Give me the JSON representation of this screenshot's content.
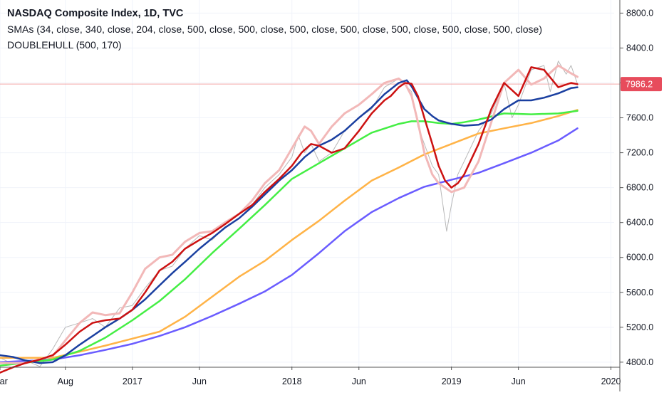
{
  "header": {
    "title": "NASDAQ Composite Index, 1D, TVC",
    "indicator_sma": "SMAs (34, close, 340, close, 204, close, 500, close, 500, close, 500, close, 500, close, 500, close, 500, close, 500, close)",
    "indicator_hull": "DOUBLEHULL (500, 170)"
  },
  "chart_data": {
    "type": "line",
    "title": "NASDAQ Composite Index, 1D, TVC",
    "last_price_label": "7986.2",
    "last_price": 7986.2,
    "ylim": [
      4750,
      8950
    ],
    "xlim": [
      2016.17,
      2020.02
    ],
    "y_ticks": [
      4800,
      5200,
      5600,
      6000,
      6400,
      6800,
      7200,
      7600,
      8000,
      8400,
      8800
    ],
    "y_tick_labels": [
      "4800.0",
      "5200.0",
      "5600.0",
      "6000.0",
      "6400.0",
      "6800.0",
      "7200.0",
      "7600.0",
      "8000.0",
      "8400.0",
      "8800.0"
    ],
    "x_ticks": [
      {
        "label": "Mar",
        "x": 2016.17
      },
      {
        "label": "Aug",
        "x": 2016.58
      },
      {
        "label": "2017",
        "x": 2017.0
      },
      {
        "label": "Jun",
        "x": 2017.42
      },
      {
        "label": "2018",
        "x": 2018.0
      },
      {
        "label": "Jun",
        "x": 2018.42
      },
      {
        "label": "2019",
        "x": 2019.0
      },
      {
        "label": "Jun",
        "x": 2019.42
      },
      {
        "label": "2020",
        "x": 2020.0
      }
    ],
    "colors": {
      "price": "#b8b8b8",
      "sma_blue": "#1a3fa0",
      "sma_green": "#44ee44",
      "sma_orange": "#ffb347",
      "sma_purple": "#6a5cff",
      "hull_red": "#cc1111",
      "hull_pink": "#f2b8b8",
      "last_price_line": "#f4a6a6",
      "badge": "#e74c5c"
    },
    "series": [
      {
        "key": "price",
        "x": [
          2016.17,
          2016.25,
          2016.33,
          2016.42,
          2016.5,
          2016.58,
          2016.67,
          2016.75,
          2016.83,
          2016.92,
          2017.0,
          2017.08,
          2017.17,
          2017.25,
          2017.33,
          2017.42,
          2017.5,
          2017.58,
          2017.67,
          2017.75,
          2017.83,
          2017.92,
          2018.0,
          2018.04,
          2018.08,
          2018.12,
          2018.17,
          2018.25,
          2018.33,
          2018.42,
          2018.5,
          2018.58,
          2018.67,
          2018.75,
          2018.79,
          2018.83,
          2018.88,
          2018.92,
          2018.97,
          2019.0,
          2019.04,
          2019.08,
          2019.17,
          2019.25,
          2019.33,
          2019.38,
          2019.42,
          2019.5,
          2019.58,
          2019.62,
          2019.67,
          2019.72,
          2019.75,
          2019.79
        ],
        "y": [
          4850,
          4780,
          4820,
          4750,
          4950,
          5200,
          5250,
          5300,
          5200,
          5420,
          5450,
          5650,
          5850,
          5900,
          6100,
          6250,
          6200,
          6350,
          6450,
          6600,
          6800,
          6950,
          7150,
          7400,
          7200,
          7300,
          7100,
          7200,
          7450,
          7600,
          7700,
          7950,
          8050,
          7900,
          7500,
          7300,
          7050,
          6950,
          6300,
          6600,
          6950,
          7100,
          7450,
          7650,
          8000,
          7600,
          7750,
          8150,
          8200,
          7900,
          8250,
          8100,
          8200,
          7990
        ]
      },
      {
        "key": "sma_blue",
        "x": [
          2016.17,
          2016.25,
          2016.33,
          2016.42,
          2016.5,
          2016.58,
          2016.67,
          2016.75,
          2016.83,
          2016.92,
          2017.0,
          2017.08,
          2017.17,
          2017.25,
          2017.33,
          2017.42,
          2017.5,
          2017.58,
          2017.67,
          2017.75,
          2017.83,
          2017.92,
          2018.0,
          2018.08,
          2018.17,
          2018.25,
          2018.33,
          2018.42,
          2018.5,
          2018.58,
          2018.67,
          2018.72,
          2018.75,
          2018.79,
          2018.83,
          2018.88,
          2018.92,
          2019.0,
          2019.08,
          2019.17,
          2019.25,
          2019.33,
          2019.42,
          2019.5,
          2019.58,
          2019.67,
          2019.75,
          2019.79
        ],
        "y": [
          4880,
          4860,
          4820,
          4790,
          4800,
          4880,
          5000,
          5100,
          5200,
          5300,
          5400,
          5520,
          5680,
          5820,
          5950,
          6100,
          6220,
          6340,
          6450,
          6580,
          6720,
          6880,
          7000,
          7150,
          7280,
          7350,
          7450,
          7600,
          7720,
          7870,
          8000,
          8030,
          7960,
          7830,
          7700,
          7620,
          7570,
          7530,
          7510,
          7520,
          7580,
          7700,
          7800,
          7800,
          7830,
          7880,
          7940,
          7950
        ]
      },
      {
        "key": "sma_green",
        "x": [
          2016.17,
          2016.5,
          2016.67,
          2016.83,
          2017.0,
          2017.17,
          2017.33,
          2017.5,
          2017.67,
          2017.83,
          2018.0,
          2018.17,
          2018.33,
          2018.5,
          2018.67,
          2018.75,
          2018.83,
          2018.92,
          2019.0,
          2019.08,
          2019.17,
          2019.33,
          2019.5,
          2019.67,
          2019.79
        ],
        "y": [
          4760,
          4830,
          4930,
          5080,
          5280,
          5500,
          5750,
          6050,
          6330,
          6600,
          6900,
          7080,
          7250,
          7430,
          7530,
          7560,
          7560,
          7540,
          7530,
          7550,
          7580,
          7650,
          7640,
          7650,
          7680
        ]
      },
      {
        "key": "sma_orange",
        "x": [
          2016.17,
          2016.5,
          2016.67,
          2016.83,
          2017.0,
          2017.17,
          2017.33,
          2017.5,
          2017.67,
          2017.83,
          2018.0,
          2018.17,
          2018.33,
          2018.5,
          2018.67,
          2018.83,
          2019.0,
          2019.17,
          2019.33,
          2019.5,
          2019.67,
          2019.79
        ],
        "y": [
          4850,
          4850,
          4920,
          4990,
          5070,
          5150,
          5320,
          5550,
          5780,
          5960,
          6200,
          6420,
          6650,
          6880,
          7030,
          7180,
          7300,
          7420,
          7480,
          7540,
          7620,
          7690
        ]
      },
      {
        "key": "sma_purple",
        "x": [
          2016.17,
          2016.5,
          2016.67,
          2016.83,
          2017.0,
          2017.17,
          2017.33,
          2017.5,
          2017.67,
          2017.83,
          2018.0,
          2018.17,
          2018.33,
          2018.5,
          2018.67,
          2018.83,
          2019.0,
          2019.17,
          2019.33,
          2019.5,
          2019.67,
          2019.79
        ],
        "y": [
          4800,
          4830,
          4880,
          4940,
          5010,
          5100,
          5200,
          5330,
          5470,
          5610,
          5800,
          6050,
          6300,
          6520,
          6680,
          6810,
          6890,
          6970,
          7080,
          7200,
          7340,
          7480
        ]
      },
      {
        "key": "hull_pink",
        "x": [
          2016.17,
          2016.33,
          2016.5,
          2016.58,
          2016.67,
          2016.75,
          2016.83,
          2016.92,
          2017.0,
          2017.08,
          2017.17,
          2017.25,
          2017.33,
          2017.42,
          2017.5,
          2017.58,
          2017.67,
          2017.75,
          2017.83,
          2017.92,
          2018.0,
          2018.08,
          2018.12,
          2018.17,
          2018.25,
          2018.33,
          2018.42,
          2018.5,
          2018.58,
          2018.67,
          2018.71,
          2018.75,
          2018.79,
          2018.83,
          2018.88,
          2018.92,
          2019.0,
          2019.08,
          2019.17,
          2019.25,
          2019.33,
          2019.42,
          2019.5,
          2019.58,
          2019.67,
          2019.75,
          2019.79
        ],
        "y": [
          4790,
          4790,
          4870,
          5050,
          5250,
          5370,
          5340,
          5360,
          5600,
          5870,
          6000,
          6030,
          6180,
          6280,
          6300,
          6400,
          6500,
          6650,
          6850,
          7000,
          7250,
          7500,
          7450,
          7300,
          7500,
          7650,
          7750,
          7870,
          8000,
          8050,
          7990,
          7850,
          7550,
          7200,
          6950,
          6850,
          6750,
          6800,
          7100,
          7550,
          8000,
          8150,
          7980,
          8050,
          8200,
          8110,
          8070
        ]
      },
      {
        "key": "hull_red",
        "x": [
          2016.17,
          2016.25,
          2016.33,
          2016.42,
          2016.5,
          2016.58,
          2016.67,
          2016.75,
          2016.83,
          2016.92,
          2017.0,
          2017.08,
          2017.17,
          2017.25,
          2017.33,
          2017.42,
          2017.5,
          2017.58,
          2017.67,
          2017.75,
          2017.83,
          2017.92,
          2018.0,
          2018.06,
          2018.12,
          2018.17,
          2018.25,
          2018.33,
          2018.42,
          2018.5,
          2018.58,
          2018.62,
          2018.67,
          2018.71,
          2018.75,
          2018.79,
          2018.83,
          2018.88,
          2018.92,
          2018.96,
          2019.0,
          2019.04,
          2019.08,
          2019.17,
          2019.25,
          2019.33,
          2019.42,
          2019.5,
          2019.58,
          2019.67,
          2019.75,
          2019.79
        ],
        "y": [
          4680,
          4740,
          4790,
          4830,
          4880,
          5000,
          5150,
          5250,
          5280,
          5300,
          5400,
          5600,
          5850,
          5950,
          6100,
          6200,
          6280,
          6380,
          6500,
          6600,
          6750,
          6900,
          7050,
          7200,
          7300,
          7280,
          7200,
          7250,
          7450,
          7650,
          7800,
          7850,
          7950,
          8000,
          7990,
          7850,
          7600,
          7300,
          7050,
          6880,
          6800,
          6850,
          6950,
          7300,
          7700,
          8000,
          7850,
          8180,
          8150,
          7950,
          8000,
          7985
        ]
      }
    ]
  }
}
